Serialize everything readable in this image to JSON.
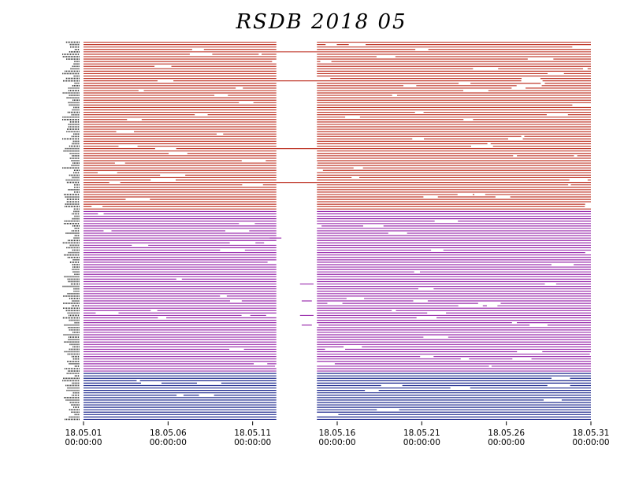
{
  "chart_data": {
    "type": "timeline",
    "title": "RSDB  2018  05",
    "x_start": "2018-05-01 00:00:00",
    "x_end": "2018-05-31 00:00:00",
    "x_ticks": [
      {
        "date": "18.05.01",
        "time": "00:00:00",
        "day": 0
      },
      {
        "date": "18.05.06",
        "time": "00:00:00",
        "day": 5
      },
      {
        "date": "18.05.11",
        "time": "00:00:00",
        "day": 10
      },
      {
        "date": "18.05.16",
        "time": "00:00:00",
        "day": 15
      },
      {
        "date": "18.05.21",
        "time": "00:00:00",
        "day": 20
      },
      {
        "date": "18.05.26",
        "time": "00:00:00",
        "day": 25
      },
      {
        "date": "18.05.31",
        "time": "00:00:00",
        "day": 30
      }
    ],
    "series": [
      {
        "color": "#c0392b",
        "count": 70
      },
      {
        "color": "#9b2fae",
        "count": 67
      },
      {
        "color": "#1f2a8f",
        "count": 20
      }
    ],
    "common_outage_days": [
      11.4,
      13.8
    ],
    "grid": false,
    "legend": "none"
  }
}
